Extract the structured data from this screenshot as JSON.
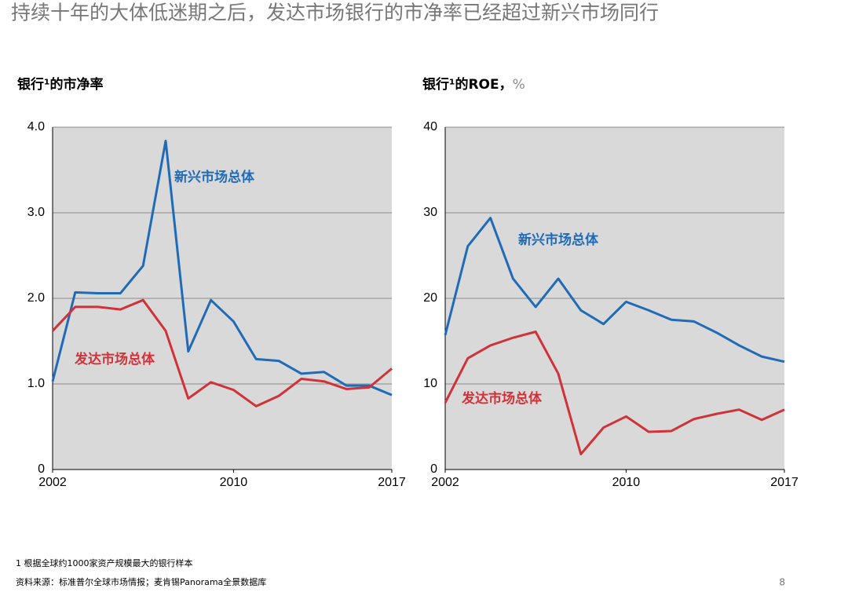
{
  "headline": "持续十年的大体低迷期之后，发达市场银行的市净率已经超过新兴市场同行",
  "footnote": "1 根据全球约1000家资产规模最大的银行样本",
  "source": "资料来源：标准普尔全球市场情报；麦肯锡Panorama全景数据库",
  "page_number": "8",
  "chart_data": [
    {
      "type": "line",
      "title": "银行¹的市净率",
      "x": [
        2002,
        2003,
        2004,
        2005,
        2006,
        2007,
        2008,
        2009,
        2010,
        2011,
        2012,
        2013,
        2014,
        2015,
        2016,
        2017
      ],
      "xlim": [
        2002,
        2017
      ],
      "xticks": [
        2002,
        2010,
        2017
      ],
      "ylim": [
        0,
        4
      ],
      "yticks": [
        0,
        {
          "value": 1,
          "label": "1.0"
        },
        {
          "value": 2,
          "label": "2.0"
        },
        {
          "value": 3,
          "label": "3.0"
        },
        {
          "value": 4,
          "label": "4.0"
        }
      ],
      "grid": true,
      "series": [
        {
          "name": "新兴市场总体",
          "color": "#1f6bb8",
          "values": [
            1.03,
            2.07,
            2.06,
            2.06,
            2.38,
            3.84,
            1.38,
            1.98,
            1.73,
            1.29,
            1.27,
            1.12,
            1.14,
            0.98,
            0.98,
            0.87
          ]
        },
        {
          "name": "发达市场总体",
          "color": "#d0323a",
          "values": [
            1.62,
            1.9,
            1.9,
            1.87,
            1.98,
            1.62,
            0.83,
            1.02,
            0.93,
            0.74,
            0.86,
            1.06,
            1.03,
            0.94,
            0.96,
            1.18
          ]
        }
      ]
    },
    {
      "type": "line",
      "title": "银行¹的ROE，",
      "unit": "%",
      "x": [
        2002,
        2003,
        2004,
        2005,
        2006,
        2007,
        2008,
        2009,
        2010,
        2011,
        2012,
        2013,
        2014,
        2015,
        2016,
        2017
      ],
      "xlim": [
        2002,
        2017
      ],
      "xticks": [
        2002,
        2010,
        2017
      ],
      "ylim": [
        0,
        40
      ],
      "yticks": [
        0,
        10,
        20,
        30,
        40
      ],
      "grid": true,
      "series": [
        {
          "name": "新兴市场总体",
          "color": "#1f6bb8",
          "values": [
            15.7,
            26.1,
            29.4,
            22.3,
            19.0,
            22.3,
            18.6,
            17.0,
            19.6,
            18.6,
            17.5,
            17.3,
            16.0,
            14.5,
            13.2,
            12.6
          ]
        },
        {
          "name": "发达市场总体",
          "color": "#d0323a",
          "values": [
            7.8,
            13.0,
            14.5,
            15.4,
            16.1,
            11.2,
            1.8,
            4.9,
            6.2,
            4.4,
            4.5,
            5.9,
            6.5,
            7.0,
            5.8,
            7.0
          ]
        }
      ]
    }
  ]
}
